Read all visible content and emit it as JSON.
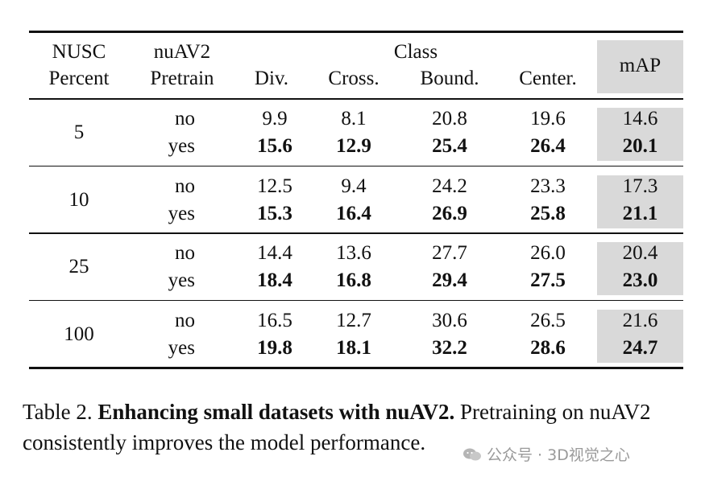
{
  "headers": {
    "nusc_line1": "NUSC",
    "nusc_line2": "Percent",
    "pretrain_line1": "nuAV2",
    "pretrain_line2": "Pretrain",
    "class": "Class",
    "div": "Div.",
    "cross": "Cross.",
    "bound": "Bound.",
    "center": "Center.",
    "map": "mAP"
  },
  "groups": [
    {
      "percent": "5",
      "rows": [
        {
          "pretrain": "no",
          "div": "9.9",
          "cross": "8.1",
          "bound": "20.8",
          "center": "19.6",
          "map": "14.6"
        },
        {
          "pretrain": "yes",
          "div": "15.6",
          "cross": "12.9",
          "bound": "25.4",
          "center": "26.4",
          "map": "20.1"
        }
      ]
    },
    {
      "percent": "10",
      "rows": [
        {
          "pretrain": "no",
          "div": "12.5",
          "cross": "9.4",
          "bound": "24.2",
          "center": "23.3",
          "map": "17.3"
        },
        {
          "pretrain": "yes",
          "div": "15.3",
          "cross": "16.4",
          "bound": "26.9",
          "center": "25.8",
          "map": "21.1"
        }
      ]
    },
    {
      "percent": "25",
      "rows": [
        {
          "pretrain": "no",
          "div": "14.4",
          "cross": "13.6",
          "bound": "27.7",
          "center": "26.0",
          "map": "20.4"
        },
        {
          "pretrain": "yes",
          "div": "18.4",
          "cross": "16.8",
          "bound": "29.4",
          "center": "27.5",
          "map": "23.0"
        }
      ]
    },
    {
      "percent": "100",
      "rows": [
        {
          "pretrain": "no",
          "div": "16.5",
          "cross": "12.7",
          "bound": "30.6",
          "center": "26.5",
          "map": "21.6"
        },
        {
          "pretrain": "yes",
          "div": "19.8",
          "cross": "18.1",
          "bound": "32.2",
          "center": "28.6",
          "map": "24.7"
        }
      ]
    }
  ],
  "caption": {
    "label": "Table 2.",
    "bold": "Enhancing small datasets with nuAV2.",
    "rest": "Pretraining on nuAV2 consistently improves the model performance."
  },
  "watermark": {
    "text": "公众号 · 3D视觉之心",
    "icon": "wechat-icon"
  }
}
